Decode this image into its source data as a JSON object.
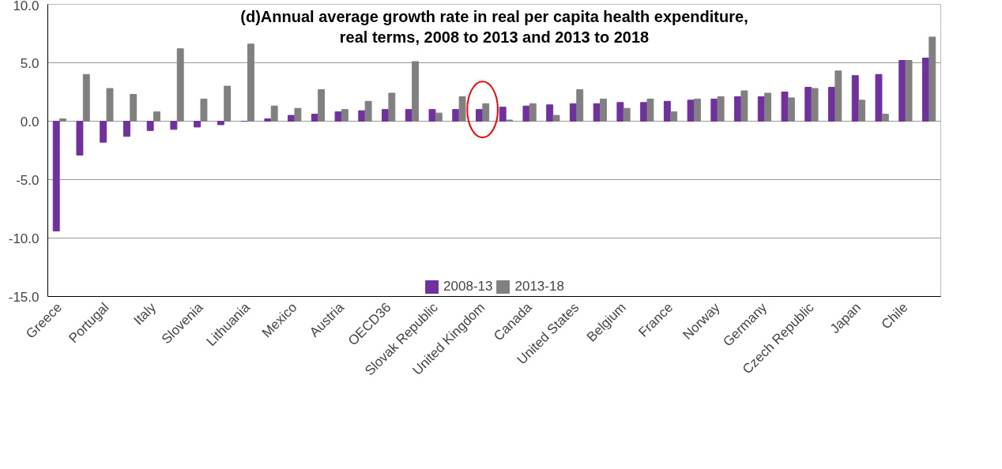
{
  "chart_data": {
    "type": "bar",
    "title": "(d)Annual average growth rate in real per capita health expenditure, real terms, 2008 to 2013 and 2013 to 2018",
    "categories": [
      "Greece",
      null,
      "Portugal",
      null,
      "Italy",
      null,
      "Slovenia",
      null,
      "Lithuania",
      null,
      "Mexico",
      null,
      "Austria",
      null,
      "OECD36",
      null,
      "Slovak Republic",
      null,
      "United Kingdom",
      null,
      "Canada",
      null,
      "United States",
      null,
      "Belgium",
      null,
      "France",
      null,
      "Norway",
      null,
      "Germany",
      null,
      "Czech Republic",
      null,
      "Japan",
      null,
      "Chile",
      null
    ],
    "series": [
      {
        "name": "2008-13",
        "color": "#7030a0",
        "values": [
          -9.4,
          -2.9,
          -1.8,
          -1.3,
          -0.8,
          -0.7,
          -0.5,
          -0.3,
          0.0,
          0.2,
          0.5,
          0.6,
          0.8,
          0.9,
          1.0,
          1.0,
          1.0,
          1.0,
          1.0,
          1.2,
          1.3,
          1.4,
          1.5,
          1.5,
          1.6,
          1.6,
          1.7,
          1.8,
          1.9,
          2.1,
          2.1,
          2.5,
          2.9,
          2.9,
          3.9,
          4.0,
          5.2,
          5.4
        ]
      },
      {
        "name": "2013-18",
        "color": "#808080",
        "values": [
          0.2,
          4.0,
          2.8,
          2.3,
          0.8,
          6.2,
          1.9,
          3.0,
          6.6,
          1.3,
          1.1,
          2.7,
          1.0,
          1.7,
          2.4,
          5.1,
          0.7,
          2.1,
          1.5,
          0.1,
          1.5,
          0.5,
          2.7,
          1.9,
          1.1,
          1.9,
          0.8,
          1.9,
          2.1,
          2.6,
          2.4,
          2.0,
          2.8,
          4.3,
          1.8,
          0.6,
          5.2,
          7.2
        ]
      }
    ],
    "ylim": [
      -15,
      10
    ],
    "yticks": [
      {
        "value": -15,
        "label": "-15.0"
      },
      {
        "value": -10,
        "label": "-10.0"
      },
      {
        "value": -5,
        "label": "-5.0"
      },
      {
        "value": 0,
        "label": "0.0"
      },
      {
        "value": 5,
        "label": "5.0"
      },
      {
        "value": 10,
        "label": "10.0"
      }
    ],
    "grid": "y",
    "legend": "bottom"
  }
}
